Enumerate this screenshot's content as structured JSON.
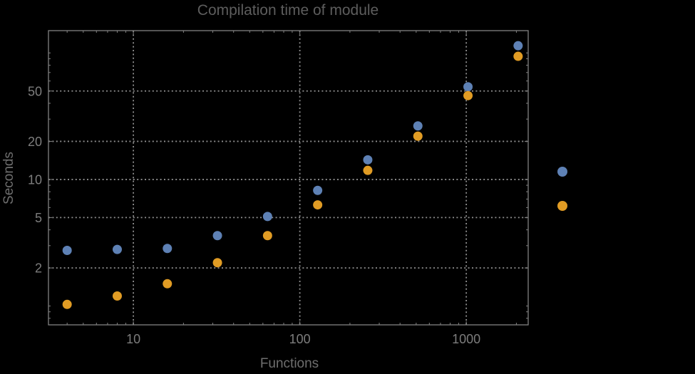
{
  "chart_data": {
    "type": "scatter",
    "title": "Compilation time of module",
    "xlabel": "Functions",
    "ylabel": "Seconds",
    "x_scale": "log",
    "y_scale": "log",
    "grid": "dotted-major",
    "x": [
      4,
      8,
      16,
      32,
      64,
      128,
      256,
      512,
      1024,
      2048
    ],
    "series": [
      {
        "name": "series-1",
        "color": "#5E81B5",
        "values": [
          2.75,
          2.8,
          2.85,
          3.6,
          5.1,
          8.2,
          14.3,
          26.5,
          54,
          114
        ]
      },
      {
        "name": "series-2",
        "color": "#E19C24",
        "values": [
          1.03,
          1.2,
          1.5,
          2.2,
          3.6,
          6.3,
          11.8,
          22,
          46,
          94
        ]
      }
    ],
    "x_ticks": [
      10,
      100,
      1000
    ],
    "x_tick_labels": [
      "10",
      "100",
      "1000"
    ],
    "y_ticks": [
      2,
      5,
      10,
      20,
      50
    ],
    "y_tick_labels": [
      "2",
      "5",
      "10",
      "20",
      "50"
    ],
    "x_range": [
      3.09,
      2355
    ],
    "y_range": [
      0.71,
      150
    ],
    "legend_position": "right"
  },
  "legend": {
    "entries": [
      {
        "name": "legend-marker-1",
        "marker_color": "#5E81B5"
      },
      {
        "name": "legend-marker-2",
        "marker_color": "#E19C24"
      }
    ]
  },
  "colors": {
    "background": "#000000",
    "frame": "#828282",
    "grid": "#8f8f8f",
    "tick_label": "#7d7d7d",
    "axis_label": "#6e6e6e",
    "title": "#5d5d5d"
  }
}
